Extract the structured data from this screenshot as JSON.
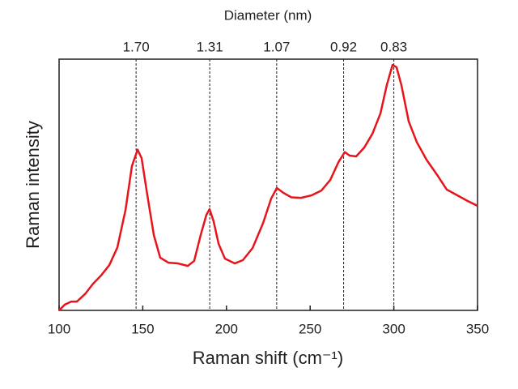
{
  "chart_data": {
    "type": "line",
    "xlabel": "Raman shift (cm⁻¹)",
    "ylabel": "Raman intensity",
    "x2label": "Diameter (nm)",
    "xlim": [
      100,
      350
    ],
    "xticks": [
      100,
      150,
      200,
      250,
      300,
      350
    ],
    "ylim": [
      0,
      100
    ],
    "x2ticks": [
      {
        "value": 146,
        "label": "1.70"
      },
      {
        "value": 190,
        "label": "1.31"
      },
      {
        "value": 230,
        "label": "1.07"
      },
      {
        "value": 270,
        "label": "0.92"
      },
      {
        "value": 300,
        "label": "0.83"
      }
    ],
    "series": [
      {
        "color": "#e8141b",
        "x": [
          100,
          103.4,
          107.3,
          110.6,
          115.5,
          120.3,
          125.1,
          130,
          134.8,
          139.7,
          143.5,
          146.9,
          149.3,
          152.7,
          156.6,
          160.4,
          165.3,
          171,
          176.9,
          180.7,
          184.6,
          188,
          189.9,
          192.3,
          195.3,
          199.1,
          204.9,
          209.8,
          215.6,
          221.9,
          226.7,
          230.1,
          234,
          238.8,
          244.6,
          250.9,
          256.7,
          262,
          266.9,
          270.7,
          273.6,
          277.5,
          282.3,
          287.2,
          292,
          295.8,
          299.2,
          301.6,
          304.5,
          308.9,
          313.7,
          319.5,
          325.8,
          331.6,
          337.9,
          344.2,
          350
        ],
        "values": [
          0,
          2.3,
          3.5,
          3.5,
          6.5,
          10.6,
          13.9,
          18,
          25,
          40,
          57.4,
          64,
          60.6,
          46,
          30,
          21,
          19,
          18.7,
          17.7,
          19.7,
          30,
          38,
          40.3,
          35.5,
          26.5,
          20.6,
          18.7,
          20,
          24.8,
          34.8,
          44.5,
          48.7,
          46.8,
          45,
          44.8,
          45.8,
          47.7,
          51.9,
          59,
          63,
          61.6,
          61.3,
          64.8,
          70.3,
          78.4,
          89.7,
          97.7,
          96.8,
          89.7,
          75.2,
          67,
          60,
          54,
          48.1,
          45.8,
          43.5,
          41.6
        ]
      }
    ]
  }
}
